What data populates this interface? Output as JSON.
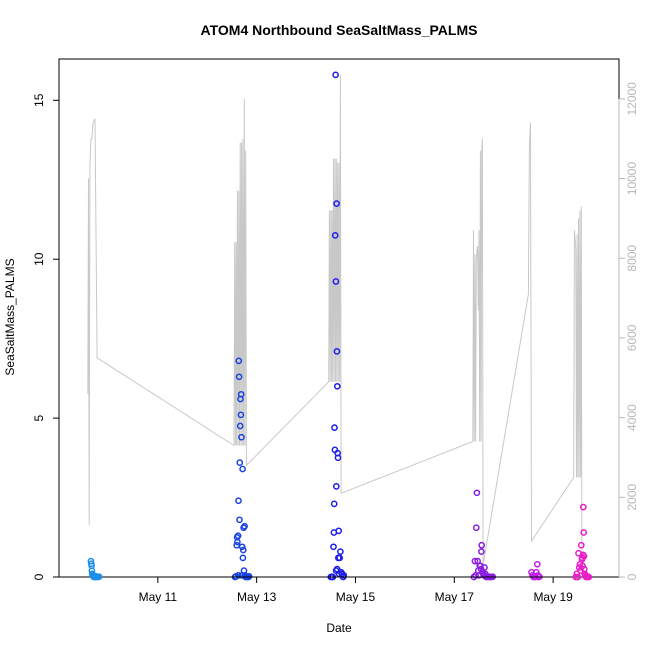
{
  "chart_data": {
    "type": "scatter",
    "title": "ATOM4 Northbound SeaSaltMass_PALMS",
    "xlabel": "Date",
    "ylabel": "SeaSaltMass_PALMS",
    "x_axis": {
      "kind": "date",
      "range": [
        "2018-05-09T00:00",
        "2018-05-20T08:00"
      ],
      "tick_labels": [
        "May 11",
        "May 13",
        "May 15",
        "May 17",
        "May 19"
      ],
      "tick_values": [
        "2018-05-11",
        "2018-05-13",
        "2018-05-15",
        "2018-05-17",
        "2018-05-19"
      ]
    },
    "y_axis_left": {
      "range": [
        0,
        16.3
      ],
      "ticks": [
        0,
        5,
        10,
        15
      ]
    },
    "y_axis_right": {
      "range": [
        0,
        13000
      ],
      "ticks": [
        0,
        2000,
        4000,
        6000,
        8000,
        10000,
        12000
      ],
      "color": "#b8b8b8"
    },
    "grid": false,
    "marker": "open-circle",
    "series": [
      {
        "color": "#1e8fe8",
        "points": [
          [
            "2018-05-09T15:30",
            0.5
          ],
          [
            "2018-05-09T15:40",
            0.42
          ],
          [
            "2018-05-09T15:50",
            0.35
          ],
          [
            "2018-05-09T16:00",
            0.2
          ],
          [
            "2018-05-09T16:10",
            0.1
          ],
          [
            "2018-05-09T16:20",
            0.05
          ],
          [
            "2018-05-09T16:40",
            0.02
          ],
          [
            "2018-05-09T17:00",
            0.0
          ],
          [
            "2018-05-09T17:20",
            0.01
          ],
          [
            "2018-05-09T17:40",
            0.0
          ],
          [
            "2018-05-09T18:00",
            0.02
          ],
          [
            "2018-05-09T18:20",
            0.0
          ],
          [
            "2018-05-09T18:40",
            0.01
          ],
          [
            "2018-05-09T19:00",
            0.0
          ],
          [
            "2018-05-09T19:30",
            0.01
          ]
        ]
      },
      {
        "color": "#1a44e0",
        "points": [
          [
            "2018-05-12T13:30",
            0.0
          ],
          [
            "2018-05-12T14:00",
            0.02
          ],
          [
            "2018-05-12T14:20",
            1.0
          ],
          [
            "2018-05-12T14:30",
            1.25
          ],
          [
            "2018-05-12T14:40",
            1.1
          ],
          [
            "2018-05-12T15:00",
            1.3
          ],
          [
            "2018-05-12T15:10",
            2.4
          ],
          [
            "2018-05-12T15:20",
            6.8
          ],
          [
            "2018-05-12T15:30",
            6.3
          ],
          [
            "2018-05-12T15:40",
            1.8
          ],
          [
            "2018-05-12T15:50",
            3.6
          ],
          [
            "2018-05-12T16:00",
            4.75
          ],
          [
            "2018-05-12T16:10",
            5.6
          ],
          [
            "2018-05-12T16:20",
            5.1
          ],
          [
            "2018-05-12T16:30",
            5.75
          ],
          [
            "2018-05-12T16:40",
            4.4
          ],
          [
            "2018-05-12T17:00",
            0.95
          ],
          [
            "2018-05-12T17:10",
            3.4
          ],
          [
            "2018-05-12T17:20",
            0.6
          ],
          [
            "2018-05-12T17:30",
            0.85
          ],
          [
            "2018-05-12T17:40",
            1.55
          ],
          [
            "2018-05-12T17:50",
            0.2
          ],
          [
            "2018-05-12T18:10",
            1.6
          ],
          [
            "2018-05-12T18:20",
            0.05
          ],
          [
            "2018-05-12T16:50",
            0.05
          ],
          [
            "2018-05-12T15:05",
            0.05
          ],
          [
            "2018-05-12T18:40",
            0.0
          ],
          [
            "2018-05-12T19:00",
            0.01
          ],
          [
            "2018-05-12T19:30",
            0.0
          ],
          [
            "2018-05-12T20:00",
            0.0
          ],
          [
            "2018-05-12T20:20",
            0.02
          ]
        ]
      },
      {
        "color": "#1c1ee8",
        "points": [
          [
            "2018-05-14T12:00",
            0.0
          ],
          [
            "2018-05-14T12:30",
            0.01
          ],
          [
            "2018-05-14T13:00",
            0.0
          ],
          [
            "2018-05-14T13:20",
            0.95
          ],
          [
            "2018-05-14T13:30",
            1.4
          ],
          [
            "2018-05-14T13:40",
            2.3
          ],
          [
            "2018-05-14T13:50",
            4.7
          ],
          [
            "2018-05-14T14:00",
            4.0
          ],
          [
            "2018-05-14T14:10",
            10.75
          ],
          [
            "2018-05-14T14:20",
            15.8
          ],
          [
            "2018-05-14T14:30",
            9.3
          ],
          [
            "2018-05-14T14:40",
            2.85
          ],
          [
            "2018-05-14T14:50",
            11.75
          ],
          [
            "2018-05-14T15:00",
            7.1
          ],
          [
            "2018-05-14T15:10",
            6.0
          ],
          [
            "2018-05-14T15:20",
            3.9
          ],
          [
            "2018-05-14T15:30",
            3.75
          ],
          [
            "2018-05-14T15:40",
            0.6
          ],
          [
            "2018-05-14T15:50",
            1.45
          ],
          [
            "2018-05-14T16:00",
            0.1
          ],
          [
            "2018-05-14T16:20",
            0.6
          ],
          [
            "2018-05-14T16:40",
            0.8
          ],
          [
            "2018-05-14T17:00",
            0.15
          ],
          [
            "2018-05-14T17:30",
            0.1
          ],
          [
            "2018-05-14T18:00",
            0.0
          ],
          [
            "2018-05-14T18:20",
            0.05
          ],
          [
            "2018-05-14T14:35",
            0.2
          ],
          [
            "2018-05-14T15:05",
            0.25
          ]
        ]
      },
      {
        "color": "#8a1ee0",
        "points": [
          [
            "2018-05-17T09:30",
            0.0
          ],
          [
            "2018-05-17T10:00",
            0.5
          ],
          [
            "2018-05-17T10:20",
            0.05
          ],
          [
            "2018-05-17T10:40",
            1.55
          ],
          [
            "2018-05-17T11:00",
            2.65
          ],
          [
            "2018-05-17T11:20",
            0.5
          ],
          [
            "2018-05-17T11:40",
            0.2
          ],
          [
            "2018-05-17T12:00",
            0.05
          ],
          [
            "2018-05-17T12:20",
            0.35
          ],
          [
            "2018-05-17T12:40",
            0.35
          ],
          [
            "2018-05-17T13:00",
            0.25
          ],
          [
            "2018-05-17T13:10",
            0.8
          ],
          [
            "2018-05-17T13:20",
            1.0
          ],
          [
            "2018-05-17T13:40",
            0.15
          ],
          [
            "2018-05-17T14:00",
            0.1
          ],
          [
            "2018-05-17T14:20",
            0.05
          ],
          [
            "2018-05-17T14:40",
            0.3
          ],
          [
            "2018-05-17T15:00",
            0.1
          ],
          [
            "2018-05-17T15:30",
            0.0
          ],
          [
            "2018-05-17T16:00",
            0.02
          ],
          [
            "2018-05-17T16:30",
            0.0
          ],
          [
            "2018-05-17T17:00",
            0.01
          ],
          [
            "2018-05-17T17:30",
            0.0
          ],
          [
            "2018-05-17T18:00",
            0.0
          ],
          [
            "2018-05-17T18:40",
            0.01
          ]
        ]
      },
      {
        "color": "#c01ee8",
        "points": [
          [
            "2018-05-18T13:30",
            0.15
          ],
          [
            "2018-05-18T14:00",
            0.05
          ],
          [
            "2018-05-18T14:30",
            0.0
          ],
          [
            "2018-05-18T15:00",
            0.02
          ],
          [
            "2018-05-18T15:30",
            0.0
          ],
          [
            "2018-05-18T15:50",
            0.15
          ],
          [
            "2018-05-18T16:20",
            0.4
          ],
          [
            "2018-05-18T16:40",
            0.05
          ],
          [
            "2018-05-18T17:00",
            0.0
          ],
          [
            "2018-05-18T17:20",
            0.01
          ]
        ]
      },
      {
        "color": "#e81ec8",
        "points": [
          [
            "2018-05-19T11:00",
            0.0
          ],
          [
            "2018-05-19T11:30",
            0.1
          ],
          [
            "2018-05-19T12:00",
            0.0
          ],
          [
            "2018-05-19T12:20",
            0.75
          ],
          [
            "2018-05-19T12:40",
            0.3
          ],
          [
            "2018-05-19T13:00",
            0.4
          ],
          [
            "2018-05-19T13:20",
            0.2
          ],
          [
            "2018-05-19T13:40",
            1.0
          ],
          [
            "2018-05-19T14:00",
            0.55
          ],
          [
            "2018-05-19T14:10",
            0.6
          ],
          [
            "2018-05-19T14:20",
            0.35
          ],
          [
            "2018-05-19T14:30",
            0.7
          ],
          [
            "2018-05-19T14:40",
            2.2
          ],
          [
            "2018-05-19T14:50",
            1.4
          ],
          [
            "2018-05-19T15:00",
            0.65
          ],
          [
            "2018-05-19T15:10",
            0.25
          ],
          [
            "2018-05-19T15:20",
            0.1
          ],
          [
            "2018-05-19T15:40",
            0.05
          ],
          [
            "2018-05-19T16:00",
            0.0
          ],
          [
            "2018-05-19T16:20",
            0.02
          ],
          [
            "2018-05-19T16:40",
            0.0
          ],
          [
            "2018-05-19T17:00",
            0.01
          ],
          [
            "2018-05-19T17:20",
            0.0
          ]
        ]
      }
    ],
    "secondary_series": {
      "axis": "right",
      "color": "#c8c8c8",
      "type": "line",
      "points": [
        [
          "2018-05-09T14:00",
          4600
        ],
        [
          "2018-05-09T14:20",
          10000
        ],
        [
          "2018-05-09T14:40",
          1300
        ],
        [
          "2018-05-09T15:00",
          10300
        ],
        [
          "2018-05-09T15:30",
          11000
        ],
        [
          "2018-05-09T16:00",
          11000
        ],
        [
          "2018-05-09T16:30",
          11400
        ],
        [
          "2018-05-09T17:30",
          11500
        ],
        [
          "2018-05-09T18:30",
          5500
        ],
        [
          "2018-05-12T13:00",
          3300
        ],
        [
          "2018-05-12T13:20",
          8400
        ],
        [
          "2018-05-12T13:40",
          3300
        ],
        [
          "2018-05-12T14:00",
          8400
        ],
        [
          "2018-05-12T14:20",
          3300
        ],
        [
          "2018-05-12T14:40",
          9700
        ],
        [
          "2018-05-12T15:00",
          3300
        ],
        [
          "2018-05-12T15:20",
          9700
        ],
        [
          "2018-05-12T15:40",
          3300
        ],
        [
          "2018-05-12T16:00",
          10900
        ],
        [
          "2018-05-12T16:20",
          3300
        ],
        [
          "2018-05-12T16:40",
          10900
        ],
        [
          "2018-05-12T17:00",
          3300
        ],
        [
          "2018-05-12T17:20",
          11000
        ],
        [
          "2018-05-12T17:40",
          3300
        ],
        [
          "2018-05-12T18:00",
          12000
        ],
        [
          "2018-05-12T18:20",
          3300
        ],
        [
          "2018-05-12T18:40",
          10700
        ],
        [
          "2018-05-12T19:00",
          2800
        ],
        [
          "2018-05-14T11:00",
          4900
        ],
        [
          "2018-05-14T11:20",
          9200
        ],
        [
          "2018-05-14T11:40",
          4900
        ],
        [
          "2018-05-14T12:00",
          9200
        ],
        [
          "2018-05-14T12:20",
          4900
        ],
        [
          "2018-05-14T12:40",
          9200
        ],
        [
          "2018-05-14T13:00",
          4900
        ],
        [
          "2018-05-14T13:20",
          10500
        ],
        [
          "2018-05-14T13:40",
          4900
        ],
        [
          "2018-05-14T14:00",
          10500
        ],
        [
          "2018-05-14T14:20",
          4900
        ],
        [
          "2018-05-14T14:40",
          10500
        ],
        [
          "2018-05-14T15:00",
          4900
        ],
        [
          "2018-05-14T15:20",
          10400
        ],
        [
          "2018-05-14T15:40",
          4900
        ],
        [
          "2018-05-14T16:00",
          10400
        ],
        [
          "2018-05-14T16:20",
          4900
        ],
        [
          "2018-05-14T16:40",
          12600
        ],
        [
          "2018-05-14T17:00",
          2100
        ],
        [
          "2018-05-17T09:00",
          3400
        ],
        [
          "2018-05-17T09:20",
          8700
        ],
        [
          "2018-05-17T09:40",
          3400
        ],
        [
          "2018-05-17T10:00",
          8100
        ],
        [
          "2018-05-17T10:20",
          3400
        ],
        [
          "2018-05-17T10:40",
          7900
        ],
        [
          "2018-05-17T11:00",
          8200
        ],
        [
          "2018-05-17T11:20",
          8300
        ],
        [
          "2018-05-17T11:40",
          6700
        ],
        [
          "2018-05-17T12:00",
          8700
        ],
        [
          "2018-05-17T12:20",
          3400
        ],
        [
          "2018-05-17T12:40",
          10700
        ],
        [
          "2018-05-17T13:00",
          3400
        ],
        [
          "2018-05-17T13:20",
          10700
        ],
        [
          "2018-05-17T13:40",
          11000
        ],
        [
          "2018-05-17T14:00",
          300
        ],
        [
          "2018-05-18T12:00",
          7100
        ],
        [
          "2018-05-18T12:30",
          10800
        ],
        [
          "2018-05-18T13:00",
          11400
        ],
        [
          "2018-05-18T13:30",
          900
        ],
        [
          "2018-05-19T10:00",
          2500
        ],
        [
          "2018-05-19T10:20",
          8700
        ],
        [
          "2018-05-19T10:40",
          8500
        ],
        [
          "2018-05-19T11:00",
          8200
        ],
        [
          "2018-05-19T11:20",
          2500
        ],
        [
          "2018-05-19T11:40",
          8600
        ],
        [
          "2018-05-19T12:00",
          2500
        ],
        [
          "2018-05-19T12:20",
          9000
        ],
        [
          "2018-05-19T12:40",
          2500
        ],
        [
          "2018-05-19T13:00",
          9200
        ],
        [
          "2018-05-19T13:20",
          2500
        ],
        [
          "2018-05-19T13:40",
          9300
        ],
        [
          "2018-05-19T14:00",
          200
        ]
      ]
    }
  }
}
